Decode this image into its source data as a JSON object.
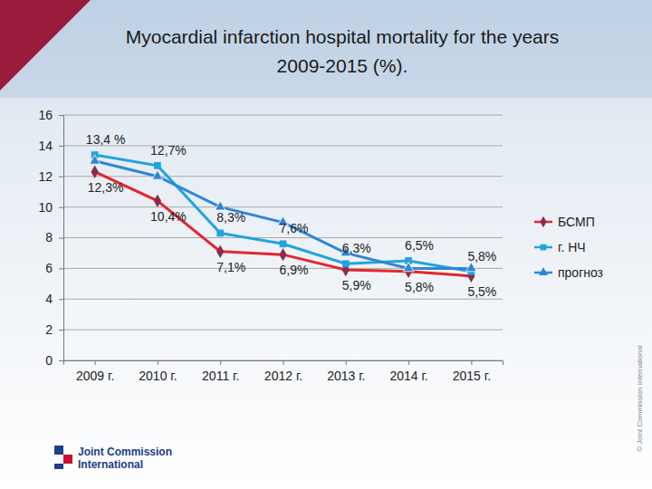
{
  "chart_data": {
    "type": "line",
    "title": "Myocardial infarction hospital mortality for the years 2009-2015 (%).",
    "categories": [
      "2009 г.",
      "2010 г.",
      "2011 г.",
      "2012 г.",
      "2013 г.",
      "2014 г.",
      "2015 г."
    ],
    "series": [
      {
        "name": "БСМП",
        "color": "#e3262d",
        "marker": "diamond",
        "values": [
          12.3,
          10.4,
          7.1,
          6.9,
          5.9,
          5.8,
          5.5
        ],
        "value_labels": [
          "12,3%",
          "10,4%",
          "7,1%",
          "6,9%",
          "5,9%",
          "5,8%",
          "5,5%"
        ]
      },
      {
        "name": "г. НЧ",
        "color": "#22a3de",
        "marker": "square",
        "values": [
          13.4,
          12.7,
          8.3,
          7.6,
          6.3,
          6.5,
          5.8
        ],
        "value_labels": [
          "13,4 %",
          "12,7%",
          "8,3%",
          "7,6%",
          "6,3%",
          "6,5%",
          "5,8%"
        ]
      },
      {
        "name": "прогноз",
        "color": "#2f86d6",
        "marker": "triangle",
        "values": [
          13.0,
          12.0,
          10.0,
          9.0,
          7.0,
          6.0,
          6.0
        ]
      }
    ],
    "ylim": [
      0,
      16
    ],
    "yticks": [
      0,
      2,
      4,
      6,
      8,
      10,
      12,
      14,
      16
    ],
    "grid": true,
    "legend": "right",
    "data_labels": true
  },
  "branding": {
    "logo_lines": [
      "Joint Commission",
      "International"
    ],
    "copyright": "© Joint Commission International"
  }
}
